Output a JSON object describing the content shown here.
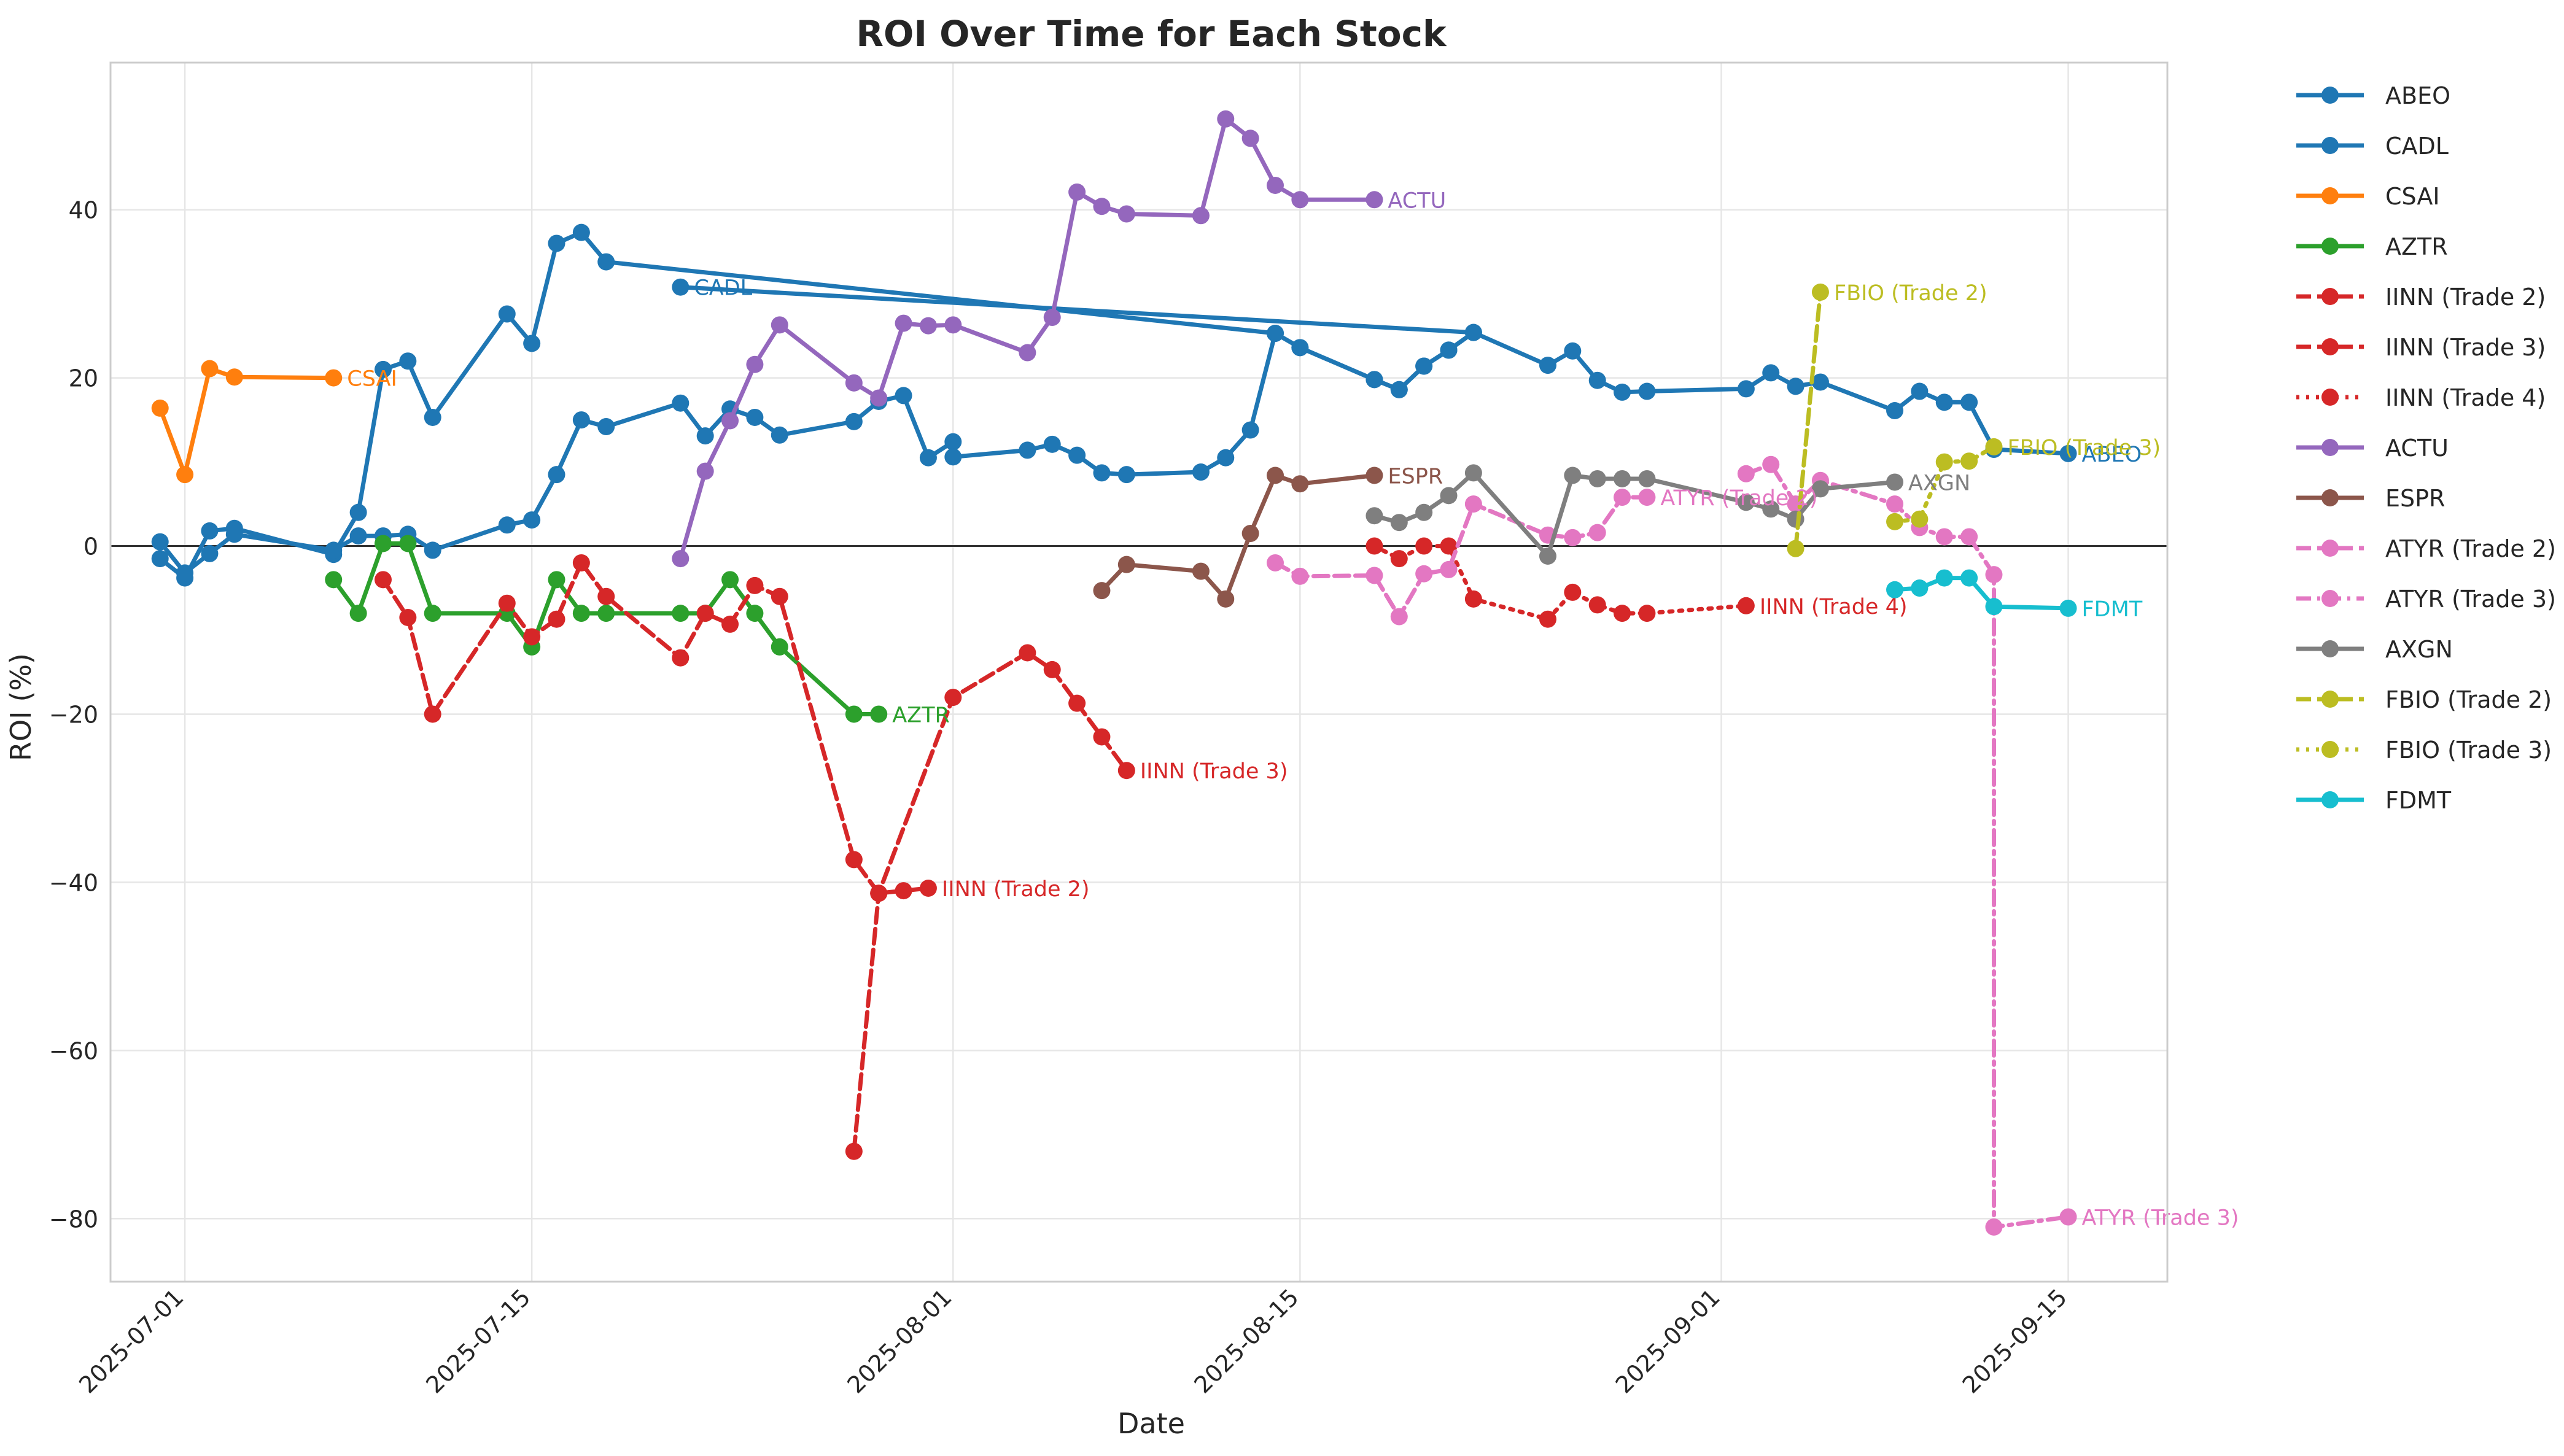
{
  "chart_data": {
    "type": "line",
    "title": "ROI Over Time for Each Stock",
    "xlabel": "Date",
    "ylabel": "ROI (%)",
    "xlim": [
      "2025-06-28",
      "2025-09-19"
    ],
    "ylim": [
      -87.5,
      57.5
    ],
    "x_ticks": [
      "2025-07-01",
      "2025-07-15",
      "2025-08-01",
      "2025-08-15",
      "2025-09-01",
      "2025-09-15"
    ],
    "y_ticks": [
      40,
      20,
      0,
      -20,
      -40,
      -60,
      -80
    ],
    "y_tick_labels": [
      "40",
      "20",
      "0",
      "−20",
      "−40",
      "−60",
      "−80"
    ],
    "grid": true,
    "zero_line": true,
    "legend_position": "outside-right",
    "series": [
      {
        "name": "ABEO",
        "color": "#1f77b4",
        "dash": "solid",
        "end_label": "ABEO",
        "points": [
          [
            "2025-06-30",
            -1.5
          ],
          [
            "2025-07-01",
            -3.8
          ],
          [
            "2025-07-02",
            1.8
          ],
          [
            "2025-07-03",
            2.1
          ],
          [
            "2025-07-07",
            -1.0
          ],
          [
            "2025-07-08",
            4.0
          ],
          [
            "2025-07-09",
            21.0
          ],
          [
            "2025-07-10",
            22.0
          ],
          [
            "2025-07-11",
            15.3
          ],
          [
            "2025-07-14",
            27.6
          ],
          [
            "2025-07-15",
            24.1
          ],
          [
            "2025-07-16",
            36.0
          ],
          [
            "2025-07-17",
            37.3
          ],
          [
            "2025-07-18",
            33.8
          ],
          [
            "2025-08-14",
            25.3
          ],
          [
            "2025-08-15",
            23.6
          ],
          [
            "2025-08-18",
            19.8
          ],
          [
            "2025-08-19",
            18.6
          ],
          [
            "2025-08-20",
            21.4
          ],
          [
            "2025-08-21",
            23.3
          ],
          [
            "2025-08-22",
            25.4
          ],
          [
            "2025-08-25",
            21.5
          ],
          [
            "2025-08-26",
            23.2
          ],
          [
            "2025-08-27",
            19.7
          ],
          [
            "2025-08-28",
            18.3
          ],
          [
            "2025-08-29",
            18.4
          ],
          [
            "2025-09-02",
            18.7
          ],
          [
            "2025-09-03",
            20.6
          ],
          [
            "2025-09-04",
            19.0
          ],
          [
            "2025-09-05",
            19.5
          ],
          [
            "2025-09-08",
            16.1
          ],
          [
            "2025-09-09",
            18.4
          ],
          [
            "2025-09-10",
            17.1
          ],
          [
            "2025-09-11",
            17.1
          ],
          [
            "2025-09-12",
            11.5
          ],
          [
            "2025-09-15",
            11.0
          ]
        ]
      },
      {
        "name": "CADL",
        "color": "#1f77b4",
        "dash": "solid",
        "end_label": "CADL",
        "points": [
          [
            "2025-06-30",
            0.5
          ],
          [
            "2025-07-01",
            -3.2
          ],
          [
            "2025-07-02",
            -0.9
          ],
          [
            "2025-07-03",
            1.4
          ],
          [
            "2025-07-07",
            -0.5
          ],
          [
            "2025-07-08",
            1.2
          ],
          [
            "2025-07-09",
            1.2
          ],
          [
            "2025-07-10",
            1.4
          ],
          [
            "2025-07-11",
            -0.5
          ],
          [
            "2025-07-14",
            2.5
          ],
          [
            "2025-07-15",
            3.1
          ],
          [
            "2025-07-16",
            8.5
          ],
          [
            "2025-07-17",
            15.0
          ],
          [
            "2025-07-18",
            14.2
          ],
          [
            "2025-07-21",
            17.0
          ],
          [
            "2025-07-22",
            13.1
          ],
          [
            "2025-07-23",
            16.3
          ],
          [
            "2025-07-24",
            15.3
          ],
          [
            "2025-07-25",
            13.2
          ],
          [
            "2025-07-28",
            14.8
          ],
          [
            "2025-07-29",
            17.2
          ],
          [
            "2025-07-30",
            17.9
          ],
          [
            "2025-07-31",
            10.5
          ],
          [
            "2025-08-01",
            12.4
          ],
          [
            "2025-08-01",
            10.6
          ],
          [
            "2025-08-04",
            11.4
          ],
          [
            "2025-08-05",
            12.1
          ],
          [
            "2025-08-06",
            10.8
          ],
          [
            "2025-08-07",
            8.7
          ],
          [
            "2025-08-08",
            8.5
          ],
          [
            "2025-08-11",
            8.8
          ],
          [
            "2025-08-12",
            10.5
          ],
          [
            "2025-08-13",
            13.8
          ],
          [
            "2025-08-14",
            25.3
          ],
          [
            "2025-08-15",
            23.6
          ],
          [
            "2025-08-18",
            19.8
          ],
          [
            "2025-08-19",
            18.6
          ],
          [
            "2025-08-20",
            21.4
          ],
          [
            "2025-08-21",
            23.3
          ],
          [
            "2025-08-22",
            25.4
          ],
          [
            "2025-07-21",
            30.8
          ]
        ],
        "label_at": [
          "2025-07-21",
          30.8
        ]
      },
      {
        "name": "CSAI",
        "color": "#ff7f0e",
        "dash": "solid",
        "end_label": "CSAI",
        "points": [
          [
            "2025-06-30",
            16.4
          ],
          [
            "2025-07-01",
            8.5
          ],
          [
            "2025-07-02",
            21.1
          ],
          [
            "2025-07-03",
            20.1
          ],
          [
            "2025-07-07",
            20.0
          ]
        ]
      },
      {
        "name": "AZTR",
        "color": "#2ca02c",
        "dash": "solid",
        "end_label": "AZTR",
        "points": [
          [
            "2025-07-07",
            -4.0
          ],
          [
            "2025-07-08",
            -8.0
          ],
          [
            "2025-07-09",
            0.3
          ],
          [
            "2025-07-10",
            0.3
          ],
          [
            "2025-07-11",
            -8.0
          ],
          [
            "2025-07-14",
            -8.0
          ],
          [
            "2025-07-15",
            -12.0
          ],
          [
            "2025-07-16",
            -4.0
          ],
          [
            "2025-07-17",
            -8.0
          ],
          [
            "2025-07-18",
            -8.0
          ],
          [
            "2025-07-21",
            -8.0
          ],
          [
            "2025-07-22",
            -8.0
          ],
          [
            "2025-07-23",
            -4.0
          ],
          [
            "2025-07-24",
            -8.0
          ],
          [
            "2025-07-25",
            -12.0
          ],
          [
            "2025-07-28",
            -20.0
          ],
          [
            "2025-07-29",
            -20.0
          ]
        ]
      },
      {
        "name": "IINN (Trade 2)",
        "color": "#d62728",
        "dash": "dashed",
        "end_label": "IINN (Trade 2)",
        "points": [
          [
            "2025-07-09",
            -4.0
          ],
          [
            "2025-07-10",
            -8.5
          ],
          [
            "2025-07-11",
            -20.0
          ],
          [
            "2025-07-14",
            -6.8
          ],
          [
            "2025-07-15",
            -10.8
          ],
          [
            "2025-07-16",
            -8.7
          ],
          [
            "2025-07-17",
            -2.0
          ],
          [
            "2025-07-18",
            -6.0
          ],
          [
            "2025-07-21",
            -13.3
          ],
          [
            "2025-07-22",
            -8.0
          ],
          [
            "2025-07-23",
            -9.3
          ],
          [
            "2025-07-24",
            -4.7
          ],
          [
            "2025-07-25",
            -6.0
          ],
          [
            "2025-07-28",
            -37.3
          ],
          [
            "2025-07-29",
            -41.3
          ],
          [
            "2025-07-30",
            -41.0
          ],
          [
            "2025-07-31",
            -40.7
          ]
        ]
      },
      {
        "name": "IINN (Trade 3)",
        "color": "#d62728",
        "dash": "dashed",
        "end_label": "IINN (Trade 3)",
        "points": [
          [
            "2025-07-28",
            -72.0
          ],
          [
            "2025-07-29",
            -41.3
          ],
          [
            "2025-08-01",
            -18.0
          ],
          [
            "2025-08-04",
            -12.7
          ],
          [
            "2025-08-05",
            -14.7
          ],
          [
            "2025-08-06",
            -18.7
          ],
          [
            "2025-08-07",
            -22.7
          ],
          [
            "2025-08-08",
            -26.7
          ]
        ]
      },
      {
        "name": "IINN (Trade 4)",
        "color": "#d62728",
        "dash": "dotted",
        "end_label": "IINN (Trade 4)",
        "points": [
          [
            "2025-08-18",
            0.0
          ],
          [
            "2025-08-19",
            -1.5
          ],
          [
            "2025-08-20",
            0.0
          ],
          [
            "2025-08-21",
            0.0
          ],
          [
            "2025-08-22",
            -6.3
          ],
          [
            "2025-08-25",
            -8.7
          ],
          [
            "2025-08-26",
            -5.5
          ],
          [
            "2025-08-27",
            -7.0
          ],
          [
            "2025-08-28",
            -8.0
          ],
          [
            "2025-08-29",
            -8.0
          ],
          [
            "2025-09-02",
            -7.1
          ]
        ]
      },
      {
        "name": "ACTU",
        "color": "#9467bd",
        "dash": "solid",
        "end_label": "ACTU",
        "points": [
          [
            "2025-07-21",
            -1.5
          ],
          [
            "2025-07-22",
            8.9
          ],
          [
            "2025-07-23",
            14.9
          ],
          [
            "2025-07-24",
            21.6
          ],
          [
            "2025-07-25",
            26.3
          ],
          [
            "2025-07-28",
            19.4
          ],
          [
            "2025-07-29",
            17.6
          ],
          [
            "2025-07-30",
            26.5
          ],
          [
            "2025-07-31",
            26.2
          ],
          [
            "2025-08-01",
            26.3
          ],
          [
            "2025-08-04",
            23.0
          ],
          [
            "2025-08-05",
            27.2
          ],
          [
            "2025-08-06",
            42.1
          ],
          [
            "2025-08-07",
            40.4
          ],
          [
            "2025-08-08",
            39.5
          ],
          [
            "2025-08-11",
            39.3
          ],
          [
            "2025-08-12",
            50.8
          ],
          [
            "2025-08-13",
            48.5
          ],
          [
            "2025-08-14",
            42.9
          ],
          [
            "2025-08-15",
            41.2
          ],
          [
            "2025-08-18",
            41.2
          ]
        ]
      },
      {
        "name": "ESPR",
        "color": "#8c564b",
        "dash": "solid",
        "end_label": "ESPR",
        "points": [
          [
            "2025-08-07",
            -5.3
          ],
          [
            "2025-08-08",
            -2.2
          ],
          [
            "2025-08-11",
            -3.0
          ],
          [
            "2025-08-12",
            -6.3
          ],
          [
            "2025-08-13",
            1.5
          ],
          [
            "2025-08-14",
            8.4
          ],
          [
            "2025-08-15",
            7.4
          ],
          [
            "2025-08-18",
            8.4
          ]
        ]
      },
      {
        "name": "ATYR (Trade 2)",
        "color": "#e377c2",
        "dash": "dashed",
        "end_label": "ATYR (Trade 2)",
        "points": [
          [
            "2025-08-14",
            -2.0
          ],
          [
            "2025-08-15",
            -3.6
          ],
          [
            "2025-08-18",
            -3.5
          ],
          [
            "2025-08-19",
            -8.4
          ],
          [
            "2025-08-20",
            -3.3
          ],
          [
            "2025-08-21",
            -2.8
          ],
          [
            "2025-08-22",
            5.0
          ],
          [
            "2025-08-25",
            1.3
          ],
          [
            "2025-08-26",
            1.0
          ],
          [
            "2025-08-27",
            1.6
          ],
          [
            "2025-08-28",
            5.8
          ],
          [
            "2025-08-29",
            5.8
          ]
        ]
      },
      {
        "name": "ATYR (Trade 3)",
        "color": "#e377c2",
        "dash": "dashdot",
        "end_label": "ATYR (Trade 3)",
        "points": [
          [
            "2025-09-02",
            8.6
          ],
          [
            "2025-09-03",
            9.7
          ],
          [
            "2025-09-04",
            5.0
          ],
          [
            "2025-09-05",
            7.8
          ],
          [
            "2025-09-08",
            5.0
          ],
          [
            "2025-09-09",
            2.2
          ],
          [
            "2025-09-10",
            1.1
          ],
          [
            "2025-09-11",
            1.1
          ],
          [
            "2025-09-12",
            -3.4
          ],
          [
            "2025-09-12",
            -81.0
          ],
          [
            "2025-09-15",
            -79.8
          ]
        ]
      },
      {
        "name": "AXGN",
        "color": "#7f7f7f",
        "dash": "solid",
        "end_label": "AXGN",
        "points": [
          [
            "2025-08-18",
            3.6
          ],
          [
            "2025-08-19",
            2.8
          ],
          [
            "2025-08-20",
            4.0
          ],
          [
            "2025-08-21",
            6.0
          ],
          [
            "2025-08-22",
            8.7
          ],
          [
            "2025-08-25",
            -1.2
          ],
          [
            "2025-08-26",
            8.4
          ],
          [
            "2025-08-27",
            8.0
          ],
          [
            "2025-08-28",
            8.0
          ],
          [
            "2025-08-29",
            8.0
          ],
          [
            "2025-09-02",
            5.2
          ],
          [
            "2025-09-03",
            4.4
          ],
          [
            "2025-09-04",
            3.2
          ],
          [
            "2025-09-05",
            6.8
          ],
          [
            "2025-09-08",
            7.6
          ]
        ]
      },
      {
        "name": "FBIO (Trade 2)",
        "color": "#bcbd22",
        "dash": "dashed",
        "end_label": "FBIO (Trade 2)",
        "points": [
          [
            "2025-09-04",
            -0.3
          ],
          [
            "2025-09-05",
            30.2
          ]
        ]
      },
      {
        "name": "FBIO (Trade 3)",
        "color": "#bcbd22",
        "dash": "dotted",
        "end_label": "FBIO (Trade 3)",
        "points": [
          [
            "2025-09-08",
            2.9
          ],
          [
            "2025-09-09",
            3.2
          ],
          [
            "2025-09-10",
            10.0
          ],
          [
            "2025-09-11",
            10.1
          ],
          [
            "2025-09-12",
            11.8
          ]
        ]
      },
      {
        "name": "FDMT",
        "color": "#17becf",
        "dash": "solid",
        "end_label": "FDMT",
        "points": [
          [
            "2025-09-08",
            -5.2
          ],
          [
            "2025-09-09",
            -5.0
          ],
          [
            "2025-09-10",
            -3.8
          ],
          [
            "2025-09-11",
            -3.8
          ],
          [
            "2025-09-12",
            -7.2
          ],
          [
            "2025-09-15",
            -7.4
          ]
        ]
      }
    ]
  }
}
